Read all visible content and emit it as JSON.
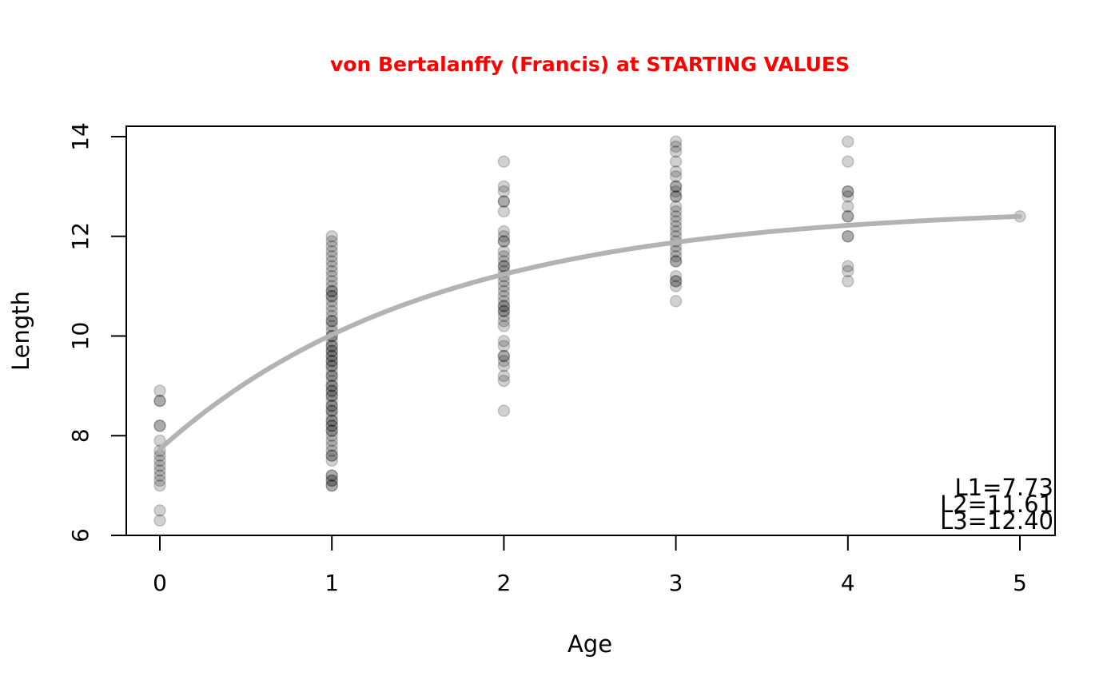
{
  "chart_data": {
    "type": "scatter",
    "title": "von Bertalanffy (Francis) at STARTING VALUES",
    "title_color": "#ff0000",
    "xlabel": "Age",
    "ylabel": "Length",
    "xlim": [
      -0.2,
      5.2
    ],
    "ylim": [
      6,
      14.2
    ],
    "x_ticks": [
      0,
      1,
      2,
      3,
      4,
      5
    ],
    "y_ticks": [
      6,
      8,
      10,
      12,
      14
    ],
    "grid": false,
    "point_color": "#000000",
    "point_opacity": 0.18,
    "curve_color": "#b3b3b3",
    "series": [
      {
        "type": "scatter",
        "points": [
          [
            0,
            8.9
          ],
          [
            0,
            8.7
          ],
          [
            0,
            8.7
          ],
          [
            0,
            8.2
          ],
          [
            0,
            8.2
          ],
          [
            0,
            7.9
          ],
          [
            0,
            7.7
          ],
          [
            0,
            7.6
          ],
          [
            0,
            7.5
          ],
          [
            0,
            7.4
          ],
          [
            0,
            7.3
          ],
          [
            0,
            7.2
          ],
          [
            0,
            7.1
          ],
          [
            0,
            7.0
          ],
          [
            0,
            6.5
          ],
          [
            0,
            6.3
          ],
          [
            1,
            12.0
          ],
          [
            1,
            11.9
          ],
          [
            1,
            11.8
          ],
          [
            1,
            11.7
          ],
          [
            1,
            11.6
          ],
          [
            1,
            11.5
          ],
          [
            1,
            11.4
          ],
          [
            1,
            11.3
          ],
          [
            1,
            11.2
          ],
          [
            1,
            11.1
          ],
          [
            1,
            11.0
          ],
          [
            1,
            10.9
          ],
          [
            1,
            10.9
          ],
          [
            1,
            10.8
          ],
          [
            1,
            10.8
          ],
          [
            1,
            10.7
          ],
          [
            1,
            10.6
          ],
          [
            1,
            10.5
          ],
          [
            1,
            10.4
          ],
          [
            1,
            10.3
          ],
          [
            1,
            10.3
          ],
          [
            1,
            10.2
          ],
          [
            1,
            10.1
          ],
          [
            1,
            10.0
          ],
          [
            1,
            10.0
          ],
          [
            1,
            9.9
          ],
          [
            1,
            9.8
          ],
          [
            1,
            9.8
          ],
          [
            1,
            9.7
          ],
          [
            1,
            9.7
          ],
          [
            1,
            9.6
          ],
          [
            1,
            9.6
          ],
          [
            1,
            9.5
          ],
          [
            1,
            9.5
          ],
          [
            1,
            9.4
          ],
          [
            1,
            9.4
          ],
          [
            1,
            9.3
          ],
          [
            1,
            9.2
          ],
          [
            1,
            9.2
          ],
          [
            1,
            9.1
          ],
          [
            1,
            9.0
          ],
          [
            1,
            9.0
          ],
          [
            1,
            8.9
          ],
          [
            1,
            8.9
          ],
          [
            1,
            8.8
          ],
          [
            1,
            8.8
          ],
          [
            1,
            8.7
          ],
          [
            1,
            8.6
          ],
          [
            1,
            8.6
          ],
          [
            1,
            8.5
          ],
          [
            1,
            8.5
          ],
          [
            1,
            8.4
          ],
          [
            1,
            8.3
          ],
          [
            1,
            8.3
          ],
          [
            1,
            8.2
          ],
          [
            1,
            8.2
          ],
          [
            1,
            8.1
          ],
          [
            1,
            8.1
          ],
          [
            1,
            8.0
          ],
          [
            1,
            7.9
          ],
          [
            1,
            7.8
          ],
          [
            1,
            7.7
          ],
          [
            1,
            7.6
          ],
          [
            1,
            7.6
          ],
          [
            1,
            7.5
          ],
          [
            1,
            7.2
          ],
          [
            1,
            7.2
          ],
          [
            1,
            7.1
          ],
          [
            1,
            7.1
          ],
          [
            1,
            7.0
          ],
          [
            1,
            7.0
          ],
          [
            2,
            13.5
          ],
          [
            2,
            13.0
          ],
          [
            2,
            12.9
          ],
          [
            2,
            12.7
          ],
          [
            2,
            12.7
          ],
          [
            2,
            12.5
          ],
          [
            2,
            12.1
          ],
          [
            2,
            12.0
          ],
          [
            2,
            11.9
          ],
          [
            2,
            11.9
          ],
          [
            2,
            11.7
          ],
          [
            2,
            11.6
          ],
          [
            2,
            11.5
          ],
          [
            2,
            11.4
          ],
          [
            2,
            11.4
          ],
          [
            2,
            11.3
          ],
          [
            2,
            11.2
          ],
          [
            2,
            11.1
          ],
          [
            2,
            11.0
          ],
          [
            2,
            10.9
          ],
          [
            2,
            10.8
          ],
          [
            2,
            10.7
          ],
          [
            2,
            10.6
          ],
          [
            2,
            10.6
          ],
          [
            2,
            10.5
          ],
          [
            2,
            10.5
          ],
          [
            2,
            10.4
          ],
          [
            2,
            10.3
          ],
          [
            2,
            10.2
          ],
          [
            2,
            9.9
          ],
          [
            2,
            9.8
          ],
          [
            2,
            9.6
          ],
          [
            2,
            9.6
          ],
          [
            2,
            9.5
          ],
          [
            2,
            9.4
          ],
          [
            2,
            9.2
          ],
          [
            2,
            9.1
          ],
          [
            2,
            8.5
          ],
          [
            3,
            13.9
          ],
          [
            3,
            13.8
          ],
          [
            3,
            13.7
          ],
          [
            3,
            13.5
          ],
          [
            3,
            13.3
          ],
          [
            3,
            13.2
          ],
          [
            3,
            13.0
          ],
          [
            3,
            13.0
          ],
          [
            3,
            12.9
          ],
          [
            3,
            12.8
          ],
          [
            3,
            12.8
          ],
          [
            3,
            12.6
          ],
          [
            3,
            12.5
          ],
          [
            3,
            12.4
          ],
          [
            3,
            12.3
          ],
          [
            3,
            12.2
          ],
          [
            3,
            12.1
          ],
          [
            3,
            12.0
          ],
          [
            3,
            11.9
          ],
          [
            3,
            11.8
          ],
          [
            3,
            11.7
          ],
          [
            3,
            11.6
          ],
          [
            3,
            11.5
          ],
          [
            3,
            11.5
          ],
          [
            3,
            11.2
          ],
          [
            3,
            11.1
          ],
          [
            3,
            11.1
          ],
          [
            3,
            11.0
          ],
          [
            3,
            10.7
          ],
          [
            4,
            13.9
          ],
          [
            4,
            13.5
          ],
          [
            4,
            12.9
          ],
          [
            4,
            12.9
          ],
          [
            4,
            12.8
          ],
          [
            4,
            12.6
          ],
          [
            4,
            12.4
          ],
          [
            4,
            12.4
          ],
          [
            4,
            12.0
          ],
          [
            4,
            12.0
          ],
          [
            4,
            11.4
          ],
          [
            4,
            11.3
          ],
          [
            4,
            11.1
          ],
          [
            5,
            12.4
          ]
        ]
      },
      {
        "type": "line",
        "model": "von Bertalanffy (Francis)",
        "t1": 0,
        "t3": 5,
        "L1": 7.73,
        "L2": 11.61,
        "L3": 12.4
      }
    ],
    "annotations": [
      "L1=7.73",
      "L2=11.61",
      "L3=12.40"
    ],
    "annotation_placement": "bottom-right"
  }
}
